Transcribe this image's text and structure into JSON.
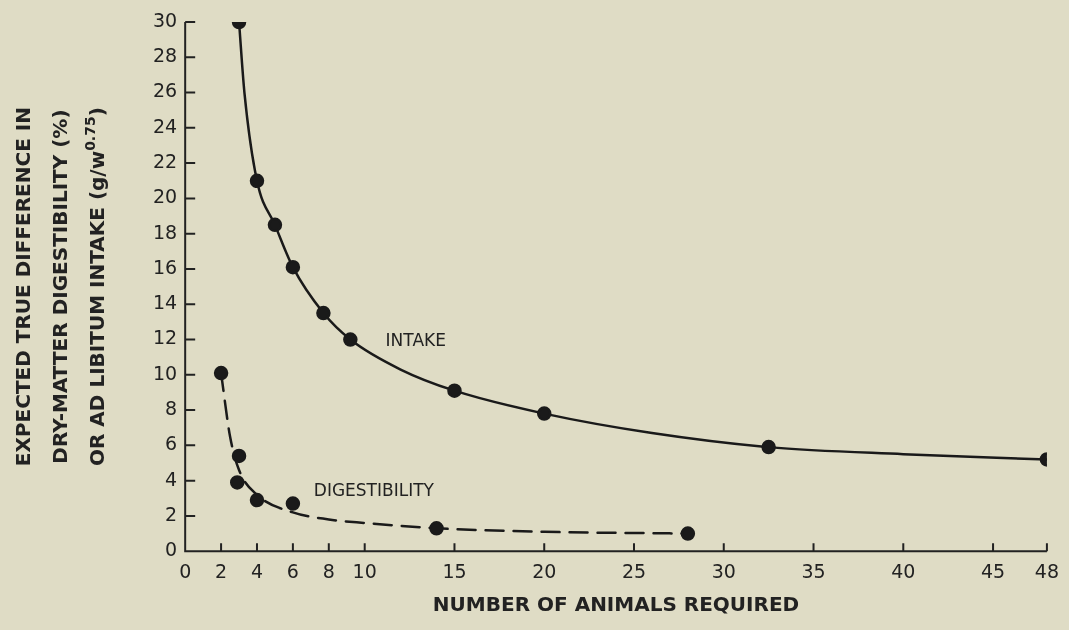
{
  "chart_data": {
    "type": "scatter",
    "xlabel": "NUMBER OF ANIMALS REQUIRED",
    "ylabel": "EXPECTED TRUE DIFFERENCE IN\nDRY-MATTER DIGESTIBILITY (%)\nOR AD LIBITUM INTAKE (g/w$^{0.75}$)",
    "xlim": [
      0,
      48
    ],
    "xticks": [
      0,
      2,
      4,
      6,
      8,
      10,
      15,
      20,
      25,
      30,
      35,
      40,
      45,
      48
    ],
    "ylim": [
      0,
      30
    ],
    "yticks": [
      0,
      2,
      4,
      6,
      8,
      10,
      12,
      14,
      16,
      18,
      20,
      22,
      24,
      26,
      28,
      30
    ],
    "grid": false,
    "legend": false,
    "marker": "circle",
    "series": [
      {
        "color": "#1a1a1a",
        "x": [
          3,
          4,
          5,
          6,
          7.7,
          9.2,
          15,
          20,
          32.5,
          48
        ],
        "values": [
          30,
          21,
          18.5,
          16.1,
          13.5,
          12,
          9.1,
          7.8,
          5.9,
          5.2
        ]
      },
      {
        "color": "#1a1a1a",
        "x": [
          2,
          3,
          2.9,
          4,
          6,
          14,
          28
        ],
        "values": [
          10.1,
          5.4,
          3.9,
          2.9,
          2.7,
          1.3,
          1
        ]
      },
      {
        "type": "line",
        "name": "INTAKE",
        "color": "#1a1a1a",
        "line_style": "solid",
        "marker": "none",
        "x": [
          3,
          3.3,
          4,
          5,
          6,
          7.7,
          9.2,
          12,
          15,
          20,
          26,
          32.5,
          40,
          48
        ],
        "values": [
          30,
          26,
          21,
          18.5,
          16.1,
          13.5,
          12,
          10.3,
          9.1,
          7.8,
          6.7,
          5.9,
          5.5,
          5.2
        ]
      },
      {
        "type": "line",
        "name": "DIGESTIBILITY",
        "color": "#1a1a1a",
        "line_style": "dashed",
        "marker": "none",
        "x": [
          2,
          2.5,
          3,
          4,
          6,
          8,
          10,
          14,
          20,
          28
        ],
        "values": [
          10.1,
          6.5,
          4.6,
          3.2,
          2.2,
          1.8,
          1.6,
          1.3,
          1.1,
          1
        ]
      }
    ]
  }
}
